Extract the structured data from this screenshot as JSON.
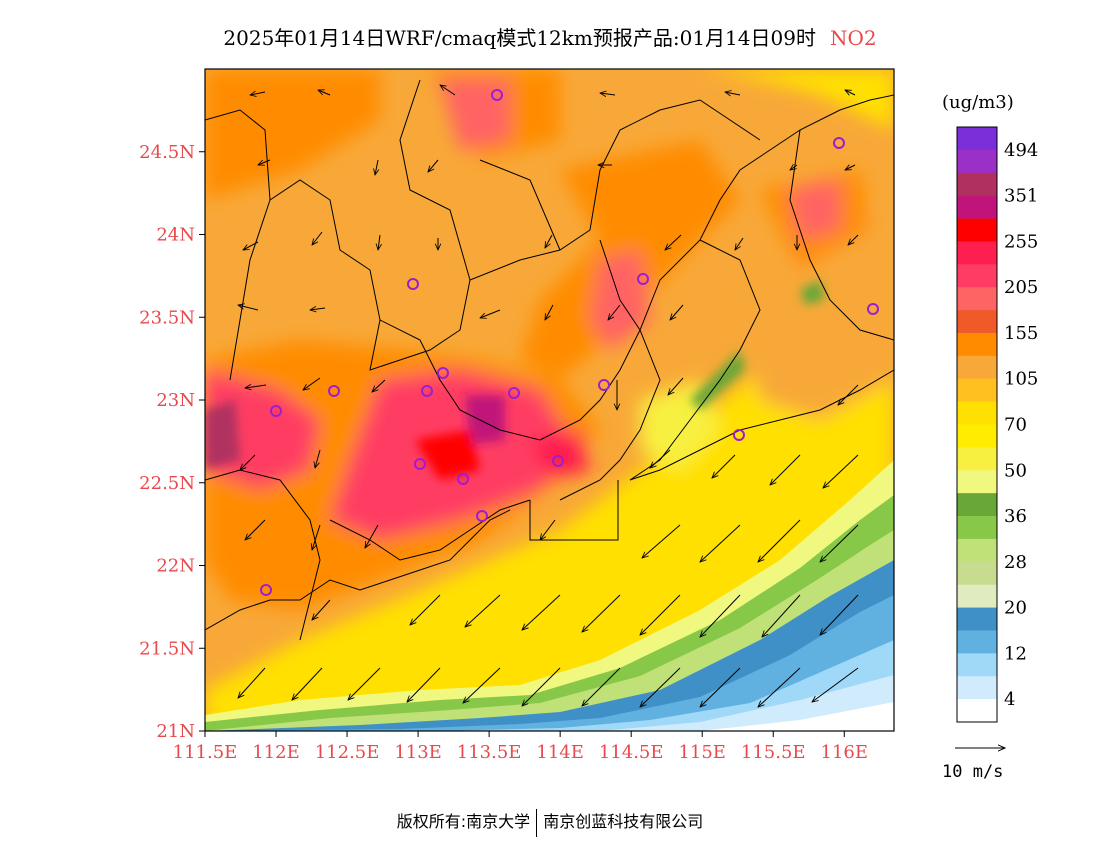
{
  "title": {
    "main": "2025年01月14日WRF/cmaq模式12km预报产品:01月14日09时",
    "species": "NO2"
  },
  "axes": {
    "lat_labels": [
      "24.5N",
      "24N",
      "23.5N",
      "23N",
      "22.5N",
      "22N",
      "21.5N",
      "21N"
    ],
    "lat_values": [
      24.5,
      24,
      23.5,
      23,
      22.5,
      22,
      21.5,
      21
    ],
    "lon_labels": [
      "111.5E",
      "112E",
      "112.5E",
      "113E",
      "113.5E",
      "114E",
      "114.5E",
      "115E",
      "115.5E",
      "116E"
    ],
    "lon_values": [
      111.5,
      112,
      112.5,
      113,
      113.5,
      114,
      114.5,
      115,
      115.5,
      116
    ],
    "lon_range": [
      111.5,
      116.35
    ],
    "lat_range": [
      21,
      25.0
    ]
  },
  "legend": {
    "unit": "(ug/m3)",
    "labels": [
      "494",
      "351",
      "255",
      "205",
      "155",
      "105",
      "70",
      "50",
      "36",
      "28",
      "20",
      "12",
      "4"
    ],
    "colors_top_to_bottom": [
      "#7b2fd9",
      "#9b30c8",
      "#b03060",
      "#c0147a",
      "#ff0000",
      "#ff1e50",
      "#ff3c64",
      "#ff6464",
      "#f05a28",
      "#ff8c00",
      "#f8a838",
      "#ffc020",
      "#ffe000",
      "#ffec00",
      "#f8f040",
      "#f0f880",
      "#68a838",
      "#88c848",
      "#c0e078",
      "#c8dc90",
      "#e0ecc0",
      "#4090c8",
      "#60b0e0",
      "#a0d8f8",
      "#d0ecfc",
      "#ffffff"
    ]
  },
  "wind_legend": {
    "label": "10 m/s"
  },
  "footer": {
    "left": "版权所有:南京大学",
    "right": "南京创蓝科技有限公司"
  }
}
